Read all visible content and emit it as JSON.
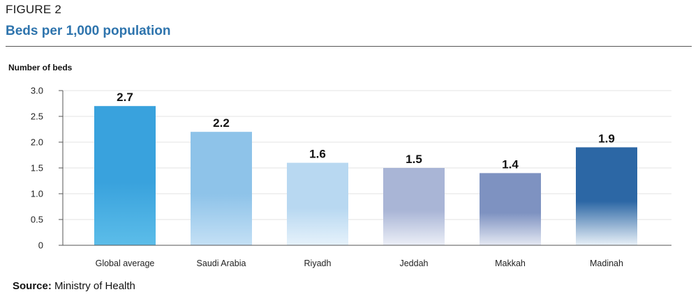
{
  "figure_label": "FIGURE 2",
  "source": {
    "prefix": "Source:",
    "text": "Ministry of Health"
  },
  "chart_data": {
    "type": "bar",
    "title": "Beds per 1,000 population",
    "ylabel": "Number of beds",
    "xlabel": "",
    "categories": [
      "Global average",
      "Saudi Arabia",
      "Riyadh",
      "Jeddah",
      "Makkah",
      "Madinah"
    ],
    "values": [
      2.7,
      2.2,
      1.6,
      1.5,
      1.4,
      1.9
    ],
    "value_labels": [
      "2.7",
      "2.2",
      "1.6",
      "1.5",
      "1.4",
      "1.9"
    ],
    "ylim": [
      0,
      3.0
    ],
    "yticks": [
      0,
      0.5,
      1.0,
      1.5,
      2.0,
      2.5,
      3.0
    ],
    "ytick_labels": [
      "0",
      "0.5",
      "1.0",
      "1.5",
      "2.0",
      "2.5",
      "3.0"
    ],
    "grid": true,
    "legend": "none",
    "bar_colors": [
      [
        "#39a2dd",
        "#5cbde9"
      ],
      [
        "#8ec3e9",
        "#c4e0f5"
      ],
      [
        "#b8d8f1",
        "#e6f2fb"
      ],
      [
        "#a9b5d6",
        "#eceff7"
      ],
      [
        "#7e92c1",
        "#e5e9f3"
      ],
      [
        "#2c67a5",
        "#e9f1f8"
      ]
    ]
  }
}
